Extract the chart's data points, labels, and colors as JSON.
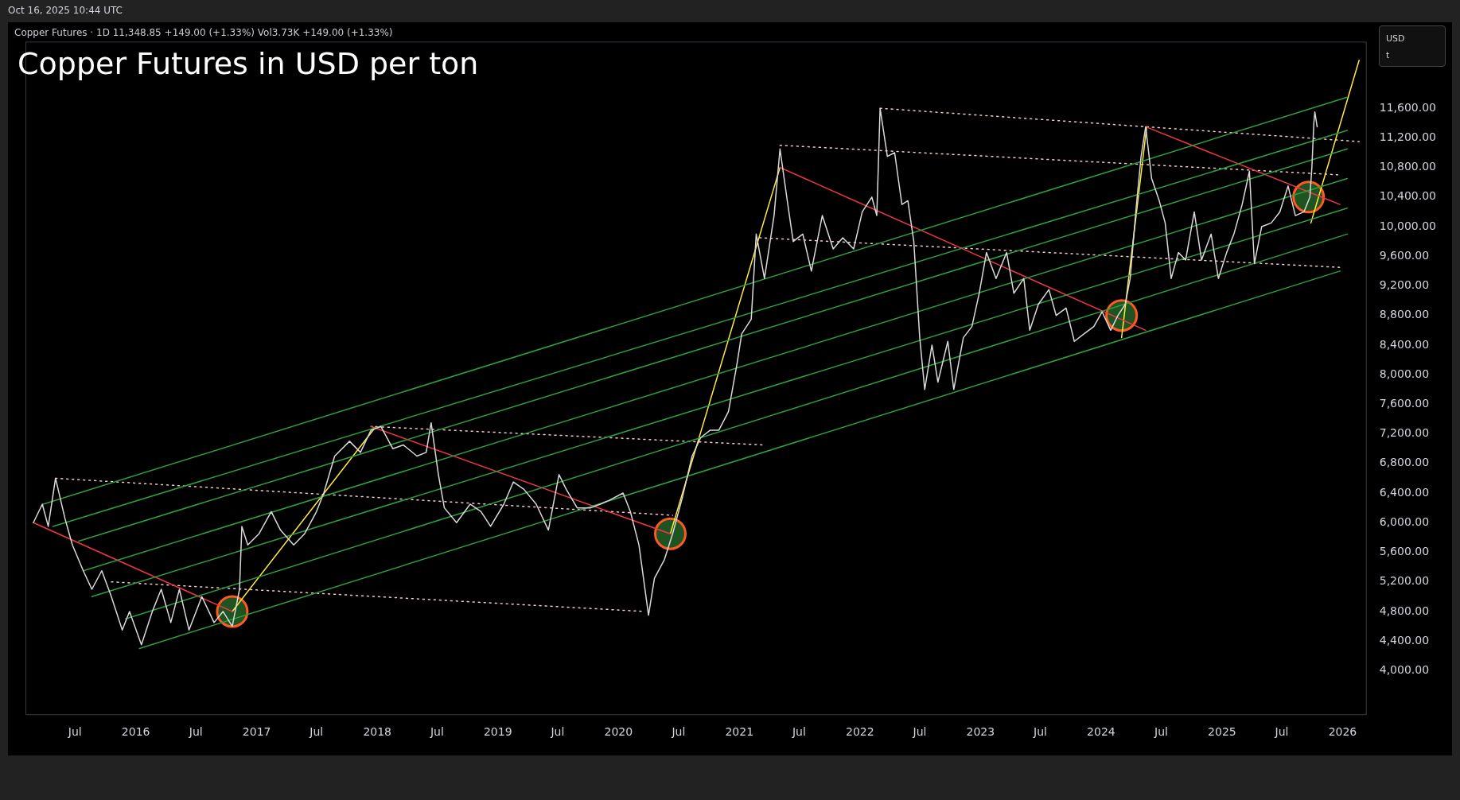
{
  "chart_data": {
    "type": "line",
    "title": "Copper Futures in USD per ton",
    "subtitle": "Copper Futures · 1D 11,348.85 +149.00 (+1.33%) Vol3.73K +149.00 (+1.33%)",
    "annotations": [
      "Oct 16, 2025 10:44 UTC",
      "USD",
      "t"
    ],
    "xlim": [
      "2015-02-01",
      "2026-03-15"
    ],
    "ylim": [
      3400,
      12500
    ],
    "xticks": [
      {
        "value": "2015-07-01",
        "label": "Jul"
      },
      {
        "value": "2016-01-01",
        "label": "2016"
      },
      {
        "value": "2016-07-01",
        "label": "Jul"
      },
      {
        "value": "2017-01-01",
        "label": "2017"
      },
      {
        "value": "2017-07-01",
        "label": "Jul"
      },
      {
        "value": "2018-01-01",
        "label": "2018"
      },
      {
        "value": "2018-07-01",
        "label": "Jul"
      },
      {
        "value": "2019-01-01",
        "label": "2019"
      },
      {
        "value": "2019-07-01",
        "label": "Jul"
      },
      {
        "value": "2020-01-01",
        "label": "2020"
      },
      {
        "value": "2020-07-01",
        "label": "Jul"
      },
      {
        "value": "2021-01-01",
        "label": "2021"
      },
      {
        "value": "2021-07-01",
        "label": "Jul"
      },
      {
        "value": "2022-01-01",
        "label": "2022"
      },
      {
        "value": "2022-07-01",
        "label": "Jul"
      },
      {
        "value": "2023-01-01",
        "label": "2023"
      },
      {
        "value": "2023-07-01",
        "label": "Jul"
      },
      {
        "value": "2024-01-01",
        "label": "2024"
      },
      {
        "value": "2024-07-01",
        "label": "Jul"
      },
      {
        "value": "2025-01-01",
        "label": "2025"
      },
      {
        "value": "2025-07-01",
        "label": "Jul"
      },
      {
        "value": "2026-01-01",
        "label": "2026"
      }
    ],
    "yticks": [
      {
        "value": 4000,
        "label": "4,000.00"
      },
      {
        "value": 4400,
        "label": "4,400.00"
      },
      {
        "value": 4800,
        "label": "4,800.00"
      },
      {
        "value": 5200,
        "label": "5,200.00"
      },
      {
        "value": 5600,
        "label": "5,600.00"
      },
      {
        "value": 6000,
        "label": "6,000.00"
      },
      {
        "value": 6400,
        "label": "6,400.00"
      },
      {
        "value": 6800,
        "label": "6,800.00"
      },
      {
        "value": 7200,
        "label": "7,200.00"
      },
      {
        "value": 7600,
        "label": "7,600.00"
      },
      {
        "value": 8000,
        "label": "8,000.00"
      },
      {
        "value": 8400,
        "label": "8,400.00"
      },
      {
        "value": 8800,
        "label": "8,800.00"
      },
      {
        "value": 9200,
        "label": "9,200.00"
      },
      {
        "value": 9600,
        "label": "9,600.00"
      },
      {
        "value": 10000,
        "label": "10,000.00"
      },
      {
        "value": 10400,
        "label": "10,400.00"
      },
      {
        "value": 10800,
        "label": "10,800.00"
      },
      {
        "value": 11200,
        "label": "11,200.00"
      },
      {
        "value": 11600,
        "label": "11,600.00"
      }
    ],
    "legend": false,
    "grid": false,
    "series": [
      {
        "type": "line",
        "color": "#d9d9d9",
        "x": [
          "2015-02-25",
          "2015-03-24",
          "2015-04-11",
          "2015-05-03",
          "2015-06-01",
          "2015-06-23",
          "2015-07-26",
          "2015-08-21",
          "2015-09-20",
          "2015-10-19",
          "2015-11-21",
          "2015-12-13",
          "2016-01-18",
          "2016-02-20",
          "2016-03-18",
          "2016-04-16",
          "2016-05-12",
          "2016-06-10",
          "2016-07-19",
          "2016-08-25",
          "2016-09-21",
          "2016-10-19",
          "2016-11-10",
          "2016-11-17",
          "2016-12-05",
          "2017-01-08",
          "2017-02-14",
          "2017-03-14",
          "2017-04-23",
          "2017-05-26",
          "2017-07-01",
          "2017-07-23",
          "2017-08-25",
          "2017-10-09",
          "2017-11-11",
          "2017-12-13",
          "2018-01-12",
          "2018-02-17",
          "2018-03-21",
          "2018-05-01",
          "2018-05-29",
          "2018-06-13",
          "2018-07-05",
          "2018-07-23",
          "2018-08-29",
          "2018-10-09",
          "2018-11-11",
          "2018-12-10",
          "2019-01-19",
          "2019-02-17",
          "2019-03-21",
          "2019-04-27",
          "2019-06-03",
          "2019-07-05",
          "2019-07-27",
          "2019-08-29",
          "2019-10-09",
          "2019-11-07",
          "2019-12-03",
          "2020-01-15",
          "2020-02-06",
          "2020-03-03",
          "2020-04-01",
          "2020-04-19",
          "2020-05-19",
          "2020-06-13",
          "2020-07-13",
          "2020-08-11",
          "2020-09-06",
          "2020-10-05",
          "2020-10-31",
          "2020-11-29",
          "2020-12-25",
          "2021-01-08",
          "2021-02-06",
          "2021-02-21",
          "2021-03-18",
          "2021-04-16",
          "2021-05-04",
          "2021-05-26",
          "2021-06-13",
          "2021-07-12",
          "2021-08-07",
          "2021-09-09",
          "2021-10-12",
          "2021-11-10",
          "2021-12-13",
          "2022-01-08",
          "2022-02-06",
          "2022-02-21",
          "2022-03-03",
          "2022-03-25",
          "2022-04-16",
          "2022-05-08",
          "2022-05-26",
          "2022-06-13",
          "2022-07-01",
          "2022-07-16",
          "2022-08-07",
          "2022-08-25",
          "2022-09-24",
          "2022-10-12",
          "2022-11-10",
          "2022-12-06",
          "2022-12-28",
          "2023-01-19",
          "2023-02-17",
          "2023-03-21",
          "2023-04-12",
          "2023-05-12",
          "2023-05-30",
          "2023-06-25",
          "2023-07-27",
          "2023-08-18",
          "2023-09-17",
          "2023-10-12",
          "2023-11-10",
          "2023-12-10",
          "2024-01-04",
          "2024-01-30",
          "2024-02-21",
          "2024-03-14",
          "2024-03-29",
          "2024-04-16",
          "2024-05-01",
          "2024-05-15",
          "2024-06-02",
          "2024-06-25",
          "2024-07-13",
          "2024-07-31",
          "2024-08-22",
          "2024-09-13",
          "2024-10-09",
          "2024-10-31",
          "2024-11-29",
          "2024-12-21",
          "2025-01-15",
          "2025-02-06",
          "2025-03-03",
          "2025-03-25",
          "2025-04-09",
          "2025-05-01",
          "2025-05-30",
          "2025-06-25",
          "2025-07-20",
          "2025-08-11",
          "2025-09-06",
          "2025-09-24",
          "2025-09-30",
          "2025-10-06",
          "2025-10-09",
          "2025-10-16"
        ],
        "values": [
          6000,
          6250,
          5950,
          6600,
          6050,
          5700,
          5350,
          5100,
          5350,
          5000,
          4550,
          4800,
          4350,
          4800,
          5100,
          4650,
          5100,
          4550,
          5000,
          4650,
          4800,
          4600,
          5100,
          5950,
          5700,
          5850,
          6150,
          5900,
          5700,
          5850,
          6150,
          6400,
          6900,
          7100,
          6950,
          7250,
          7300,
          7000,
          7050,
          6900,
          6950,
          7350,
          6650,
          6200,
          6000,
          6250,
          6150,
          5950,
          6250,
          6550,
          6450,
          6250,
          5900,
          6650,
          6450,
          6200,
          6200,
          6250,
          6300,
          6400,
          6150,
          5700,
          4750,
          5250,
          5500,
          5850,
          6350,
          6900,
          7150,
          7250,
          7250,
          7500,
          8150,
          8550,
          8750,
          9900,
          9300,
          10150,
          11050,
          10350,
          9800,
          9900,
          9400,
          10150,
          9700,
          9850,
          9700,
          10200,
          10400,
          10150,
          11600,
          10950,
          11000,
          10300,
          10350,
          9800,
          8500,
          7800,
          8400,
          7900,
          8450,
          7800,
          8500,
          8650,
          9100,
          9650,
          9300,
          9650,
          9100,
          9300,
          8600,
          8950,
          9150,
          8800,
          8900,
          8450,
          8550,
          8650,
          8850,
          8600,
          8800,
          8950,
          9300,
          10250,
          10950,
          11350,
          10650,
          10350,
          10050,
          9300,
          9650,
          9550,
          10200,
          9550,
          9900,
          9300,
          9650,
          9900,
          10300,
          10750,
          9500,
          10000,
          10050,
          10200,
          10550,
          10150,
          10200,
          10400,
          10800,
          11400,
          11550,
          11350
        ]
      },
      {
        "type": "line",
        "color": "#2e9e3e",
        "x": [
          "2015-03-27",
          "2026-01-15"
        ],
        "values": [
          6250,
          11750
        ]
      },
      {
        "type": "line",
        "color": "#2e9e3e",
        "x": [
          "2015-04-25",
          "2026-01-15"
        ],
        "values": [
          5950,
          11300
        ]
      },
      {
        "type": "line",
        "color": "#2e9e3e",
        "x": [
          "2015-07-12",
          "2026-01-15"
        ],
        "values": [
          5750,
          11050
        ]
      },
      {
        "type": "line",
        "color": "#2e9e3e",
        "x": [
          "2015-07-26",
          "2026-01-15"
        ],
        "values": [
          5350,
          10650
        ]
      },
      {
        "type": "line",
        "color": "#2e9e3e",
        "x": [
          "2015-08-21",
          "2026-01-15"
        ],
        "values": [
          5000,
          10250
        ]
      },
      {
        "type": "line",
        "color": "#2e9e3e",
        "x": [
          "2015-12-01",
          "2026-01-15"
        ],
        "values": [
          4700,
          9900
        ]
      },
      {
        "type": "line",
        "color": "#2e9e3e",
        "x": [
          "2016-01-12",
          "2025-12-24"
        ],
        "values": [
          4300,
          9400
        ]
      },
      {
        "type": "line",
        "color": "#f23645",
        "x": [
          "2015-02-25",
          "2016-10-19"
        ],
        "values": [
          6000,
          4800
        ]
      },
      {
        "type": "line",
        "color": "#f23645",
        "x": [
          "2017-12-13",
          "2020-06-06"
        ],
        "values": [
          7300,
          5850
        ]
      },
      {
        "type": "line",
        "color": "#f23645",
        "x": [
          "2021-05-04",
          "2024-05-15"
        ],
        "values": [
          10800,
          8600
        ]
      },
      {
        "type": "line",
        "color": "#f23645",
        "x": [
          "2024-05-15",
          "2025-12-24"
        ],
        "values": [
          11350,
          10300
        ]
      },
      {
        "type": "line",
        "color": "#ffeb3b",
        "x": [
          "2016-10-19",
          "2017-12-28"
        ],
        "values": [
          4800,
          7300
        ]
      },
      {
        "type": "line",
        "color": "#ffeb3b",
        "x": [
          "2020-06-06",
          "2021-05-04"
        ],
        "values": [
          5850,
          10800
        ]
      },
      {
        "type": "line",
        "color": "#ffeb3b",
        "x": [
          "2024-03-03",
          "2024-05-18"
        ],
        "values": [
          8500,
          11350
        ]
      },
      {
        "type": "line",
        "color": "#ffeb3b",
        "x": [
          "2025-09-27",
          "2026-02-20"
        ],
        "values": [
          10050,
          12250
        ]
      },
      {
        "type": "line",
        "color": "#f4c7c7",
        "line_style": "dotted",
        "x": [
          "2015-05-03",
          "2020-06-13"
        ],
        "values": [
          6600,
          6100
        ]
      },
      {
        "type": "line",
        "color": "#f4c7c7",
        "line_style": "dotted",
        "x": [
          "2015-10-19",
          "2020-03-20"
        ],
        "values": [
          5200,
          4800
        ]
      },
      {
        "type": "line",
        "color": "#f4c7c7",
        "line_style": "dotted",
        "x": [
          "2017-12-13",
          "2021-03-18"
        ],
        "values": [
          7300,
          7050
        ]
      },
      {
        "type": "line",
        "color": "#f4c7c7",
        "line_style": "dotted",
        "x": [
          "2021-03-03",
          "2025-12-24"
        ],
        "values": [
          9850,
          9450
        ]
      },
      {
        "type": "line",
        "color": "#f4c7c7",
        "line_style": "dotted",
        "x": [
          "2021-05-04",
          "2025-12-24"
        ],
        "values": [
          11100,
          10700
        ]
      },
      {
        "type": "line",
        "color": "#f4c7c7",
        "line_style": "dotted",
        "x": [
          "2022-03-03",
          "2026-02-20"
        ],
        "values": [
          11600,
          11150
        ]
      },
      {
        "type": "scatter",
        "color": "#2e7d32",
        "marker": "circle",
        "x": [
          "2016-10-19",
          "2020-06-06",
          "2024-03-03",
          "2025-09-20"
        ],
        "values": [
          4800,
          5850,
          8800,
          10400
        ]
      }
    ]
  }
}
